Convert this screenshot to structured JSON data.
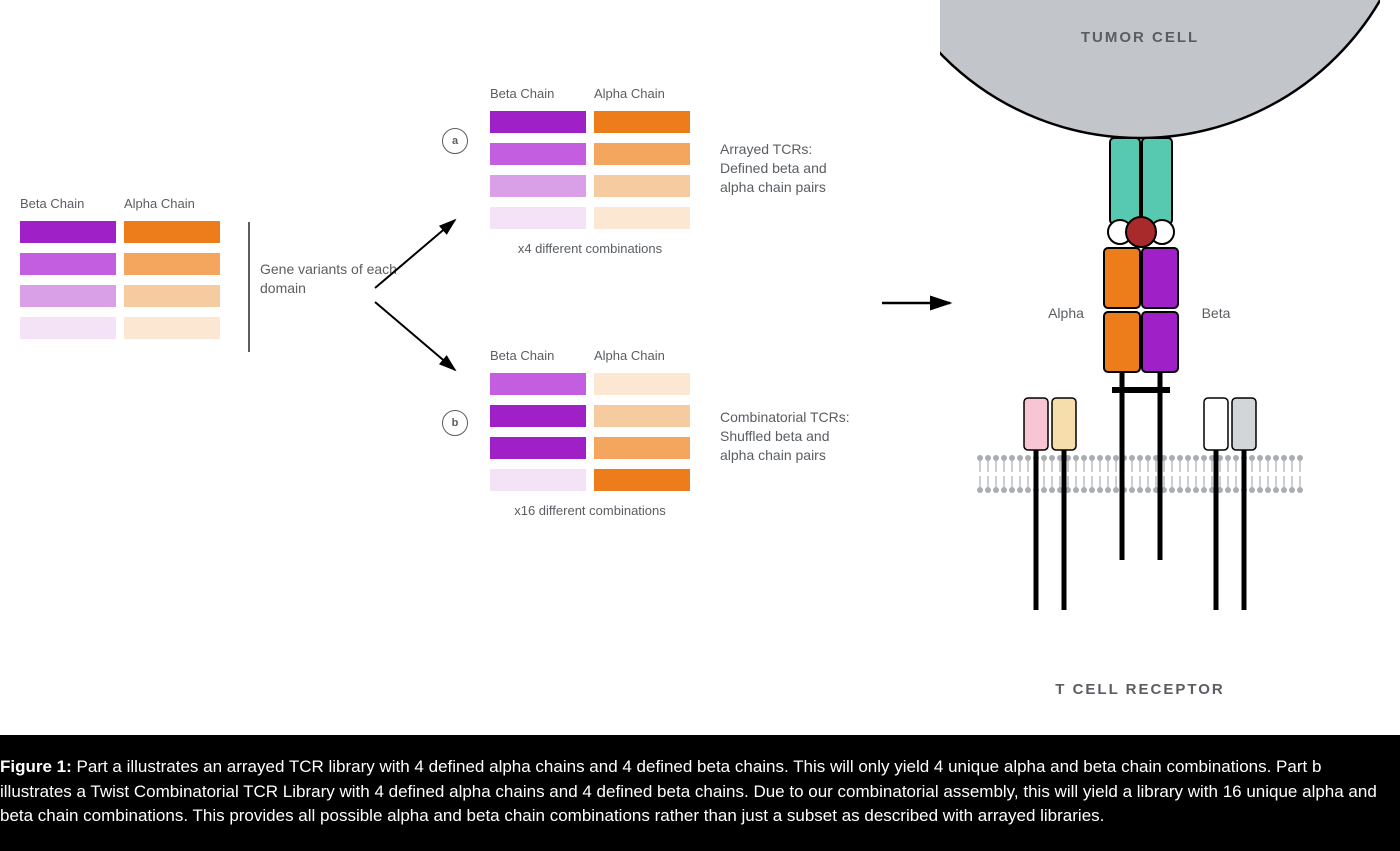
{
  "colors": {
    "beta": [
      "#a020c8",
      "#c45ee0",
      "#d9a0e8",
      "#f4e2f7"
    ],
    "alpha": [
      "#ed7d1a",
      "#f4a55e",
      "#f7cba0",
      "#fbe7d2"
    ],
    "teal": "#56c9b0",
    "red_dot": "#a82a2a",
    "orange_seg": "#ed7d1a",
    "purple_seg": "#a020c8",
    "pink_bar": "#f7c5d3",
    "yellow_bar": "#f5deab",
    "white_bar": "#ffffff",
    "grey_bar": "#d3d6d9",
    "membrane_dot": "#a9aeb3",
    "tumor_fill": "#c2c6cb",
    "text_mid": "#5a5e62"
  },
  "left_panel": {
    "beta_label": "Beta Chain",
    "alpha_label": "Alpha Chain",
    "side_text": "Gene variants of each domain",
    "rows": [
      {
        "b": 0,
        "a": 0
      },
      {
        "b": 1,
        "a": 1
      },
      {
        "b": 2,
        "a": 2
      },
      {
        "b": 3,
        "a": 3
      }
    ]
  },
  "panel_a": {
    "badge": "a",
    "beta_label": "Beta Chain",
    "alpha_label": "Alpha Chain",
    "desc": "Arrayed TCRs:\nDefined beta and\nalpha chain pairs",
    "rows": [
      {
        "b": 0,
        "a": 0
      },
      {
        "b": 1,
        "a": 1
      },
      {
        "b": 2,
        "a": 2
      },
      {
        "b": 3,
        "a": 3
      }
    ],
    "footer": "x4 different combinations"
  },
  "panel_b": {
    "badge": "b",
    "beta_label": "Beta Chain",
    "alpha_label": "Alpha Chain",
    "desc": "Combinatorial TCRs:\nShuffled beta and\nalpha chain pairs",
    "rows": [
      {
        "b": 1,
        "a": 3
      },
      {
        "b": 0,
        "a": 2
      },
      {
        "b": 0,
        "a": 1
      },
      {
        "b": 3,
        "a": 0
      }
    ],
    "footer": "x16 different combinations"
  },
  "tcr": {
    "tumor_label": "TUMOR CELL",
    "alpha_label": "Alpha",
    "beta_label": "Beta",
    "bottom_label": "T CELL RECEPTOR"
  },
  "caption": {
    "title": "Figure 1:",
    "body": " Part a illustrates an arrayed TCR library with 4 defined alpha chains and 4 defined beta chains. This will only yield 4 unique alpha and beta chain combinations. Part b illustrates a Twist Combinatorial TCR Library with 4 defined alpha chains and 4 defined beta chains. Due to our combinatorial assembly, this will yield a library with 16 unique alpha and beta chain combinations. This provides all possible alpha and beta chain combinations rather than just a subset as described with arrayed libraries."
  }
}
